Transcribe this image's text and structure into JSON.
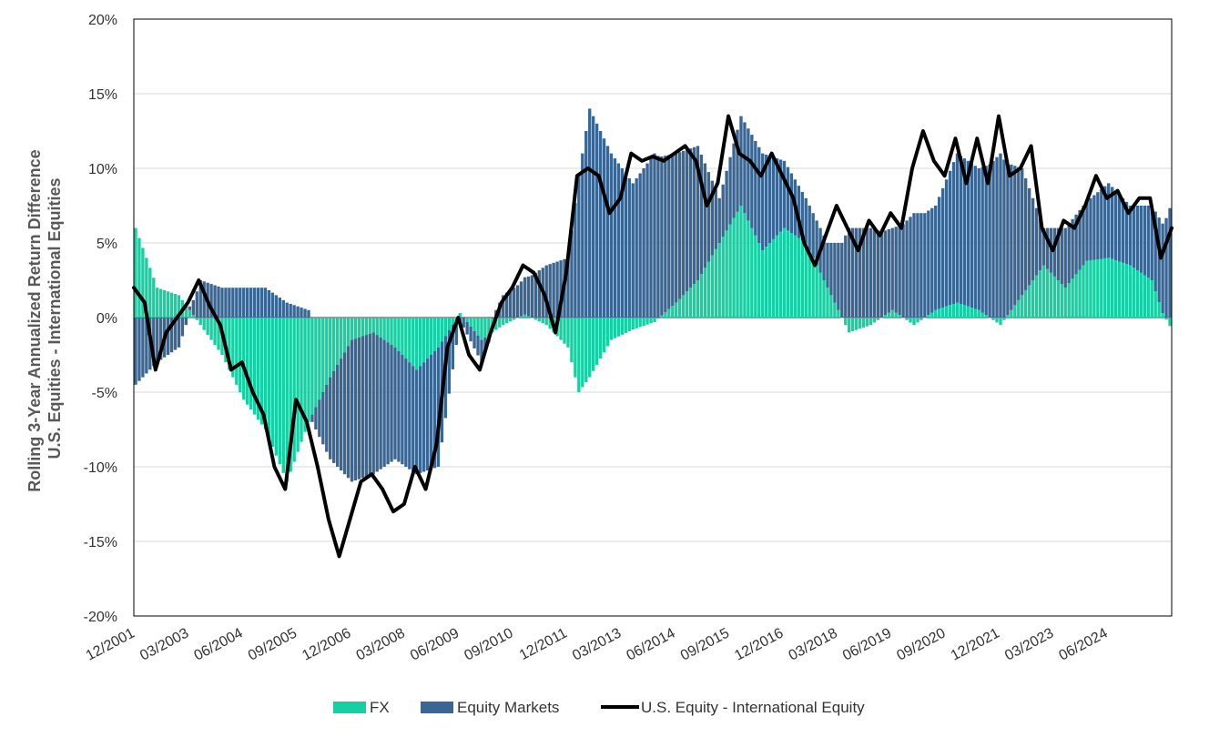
{
  "chart_data": {
    "type": "bar",
    "title": "",
    "ylabel_lines": [
      "Rolling 3-Year Annualized Return Difference",
      "U.S. Equities - International Equities"
    ],
    "xlabel": "",
    "ylim": [
      -20,
      20
    ],
    "yticks": [
      20,
      15,
      10,
      5,
      0,
      -5,
      -10,
      -15,
      -20
    ],
    "ytick_labels": [
      "20%",
      "15%",
      "10%",
      "5%",
      "0%",
      "-5%",
      "-10%",
      "-15%",
      "-20%"
    ],
    "x_start": "12/2001",
    "x_end": "12/2025",
    "xtick_labels": [
      "12/2001",
      "03/2003",
      "06/2004",
      "09/2005",
      "12/2006",
      "03/2008",
      "06/2009",
      "09/2010",
      "12/2011",
      "03/2013",
      "06/2014",
      "09/2015",
      "12/2016",
      "03/2018",
      "06/2019",
      "09/2020",
      "12/2021",
      "03/2023",
      "06/2024"
    ],
    "grid": true,
    "legend_placement": "bottom-center",
    "colors": {
      "fx": "#16cfa2",
      "equity": "#3a6694",
      "line": "#000000",
      "grid": "#d9d9d9"
    },
    "series": [
      {
        "name": "FX",
        "kind": "stacked-bar",
        "points": [
          [
            "12/2001",
            6.0
          ],
          [
            "06/2002",
            2.0
          ],
          [
            "12/2002",
            1.5
          ],
          [
            "06/2003",
            -0.5
          ],
          [
            "12/2003",
            -2.5
          ],
          [
            "06/2004",
            -5.5
          ],
          [
            "12/2004",
            -7.5
          ],
          [
            "06/2005",
            -11.0
          ],
          [
            "12/2005",
            -7.0
          ],
          [
            "06/2006",
            -4.0
          ],
          [
            "12/2006",
            -1.5
          ],
          [
            "06/2007",
            -1.0
          ],
          [
            "12/2007",
            -2.0
          ],
          [
            "06/2008",
            -3.5
          ],
          [
            "12/2008",
            -2.0
          ],
          [
            "06/2009",
            0.3
          ],
          [
            "12/2009",
            -1.5
          ],
          [
            "06/2010",
            -0.5
          ],
          [
            "12/2010",
            0.2
          ],
          [
            "06/2011",
            -0.5
          ],
          [
            "12/2011",
            -2.0
          ],
          [
            "03/2012",
            -5.0
          ],
          [
            "06/2012",
            -4.0
          ],
          [
            "12/2012",
            -1.5
          ],
          [
            "06/2013",
            -0.8
          ],
          [
            "12/2013",
            -0.3
          ],
          [
            "06/2014",
            1.0
          ],
          [
            "12/2014",
            2.5
          ],
          [
            "06/2015",
            5.0
          ],
          [
            "12/2015",
            7.5
          ],
          [
            "06/2016",
            4.5
          ],
          [
            "12/2016",
            6.0
          ],
          [
            "06/2017",
            5.0
          ],
          [
            "12/2017",
            2.0
          ],
          [
            "06/2018",
            -1.0
          ],
          [
            "12/2018",
            -0.5
          ],
          [
            "06/2019",
            0.5
          ],
          [
            "12/2019",
            -0.5
          ],
          [
            "06/2020",
            0.5
          ],
          [
            "12/2020",
            1.0
          ],
          [
            "06/2021",
            0.5
          ],
          [
            "12/2021",
            -0.5
          ],
          [
            "06/2022",
            1.5
          ],
          [
            "12/2022",
            3.5
          ],
          [
            "06/2023",
            2.0
          ],
          [
            "12/2023",
            3.8
          ],
          [
            "06/2024",
            4.0
          ],
          [
            "12/2024",
            3.5
          ],
          [
            "06/2025",
            2.5
          ],
          [
            "09/2025",
            0.3
          ],
          [
            "12/2025",
            -1.0
          ]
        ]
      },
      {
        "name": "Equity Markets",
        "kind": "stacked-bar",
        "points": [
          [
            "12/2001",
            -4.5
          ],
          [
            "06/2002",
            -3.0
          ],
          [
            "12/2002",
            -2.0
          ],
          [
            "06/2003",
            2.5
          ],
          [
            "12/2003",
            2.0
          ],
          [
            "06/2004",
            2.0
          ],
          [
            "12/2004",
            2.0
          ],
          [
            "06/2005",
            1.0
          ],
          [
            "12/2005",
            0.5
          ],
          [
            "06/2006",
            -5.5
          ],
          [
            "12/2006",
            -9.5
          ],
          [
            "06/2007",
            -9.5
          ],
          [
            "12/2007",
            -7.5
          ],
          [
            "06/2008",
            -7.0
          ],
          [
            "12/2008",
            -8.0
          ],
          [
            "06/2009",
            -0.5
          ],
          [
            "12/2009",
            -1.5
          ],
          [
            "06/2010",
            1.5
          ],
          [
            "12/2010",
            2.5
          ],
          [
            "06/2011",
            3.5
          ],
          [
            "12/2011",
            4.0
          ],
          [
            "03/2012",
            9.5
          ],
          [
            "06/2012",
            14.0
          ],
          [
            "12/2012",
            11.0
          ],
          [
            "06/2013",
            9.0
          ],
          [
            "12/2013",
            11.0
          ],
          [
            "06/2014",
            10.0
          ],
          [
            "12/2014",
            9.0
          ],
          [
            "06/2015",
            3.0
          ],
          [
            "12/2015",
            6.0
          ],
          [
            "06/2016",
            6.5
          ],
          [
            "12/2016",
            4.5
          ],
          [
            "06/2017",
            3.0
          ],
          [
            "12/2017",
            3.0
          ],
          [
            "06/2018",
            6.0
          ],
          [
            "12/2018",
            6.0
          ],
          [
            "06/2019",
            5.5
          ],
          [
            "12/2019",
            7.0
          ],
          [
            "06/2020",
            7.0
          ],
          [
            "12/2020",
            10.0
          ],
          [
            "06/2021",
            9.5
          ],
          [
            "12/2021",
            11.0
          ],
          [
            "06/2022",
            8.5
          ],
          [
            "12/2022",
            2.5
          ],
          [
            "06/2023",
            4.0
          ],
          [
            "12/2023",
            4.0
          ],
          [
            "06/2024",
            5.0
          ],
          [
            "12/2024",
            4.0
          ],
          [
            "06/2025",
            5.0
          ],
          [
            "09/2025",
            6.0
          ],
          [
            "12/2025",
            8.0
          ]
        ]
      },
      {
        "name": "U.S. Equity - International Equity",
        "kind": "line",
        "points": [
          [
            "12/2001",
            2.0
          ],
          [
            "03/2002",
            1.0
          ],
          [
            "06/2002",
            -3.5
          ],
          [
            "09/2002",
            -1.0
          ],
          [
            "12/2002",
            0.0
          ],
          [
            "03/2003",
            1.0
          ],
          [
            "06/2003",
            2.5
          ],
          [
            "09/2003",
            0.8
          ],
          [
            "12/2003",
            -0.5
          ],
          [
            "03/2004",
            -3.5
          ],
          [
            "06/2004",
            -3.0
          ],
          [
            "09/2004",
            -5.0
          ],
          [
            "12/2004",
            -6.5
          ],
          [
            "03/2005",
            -10.0
          ],
          [
            "06/2005",
            -11.5
          ],
          [
            "09/2005",
            -5.5
          ],
          [
            "12/2005",
            -7.0
          ],
          [
            "03/2006",
            -10.0
          ],
          [
            "06/2006",
            -13.5
          ],
          [
            "09/2006",
            -16.0
          ],
          [
            "12/2006",
            -13.5
          ],
          [
            "03/2007",
            -11.0
          ],
          [
            "06/2007",
            -10.5
          ],
          [
            "09/2007",
            -11.5
          ],
          [
            "12/2007",
            -13.0
          ],
          [
            "03/2008",
            -12.5
          ],
          [
            "06/2008",
            -10.0
          ],
          [
            "09/2008",
            -11.5
          ],
          [
            "12/2008",
            -8.5
          ],
          [
            "03/2009",
            -2.0
          ],
          [
            "06/2009",
            0.0
          ],
          [
            "09/2009",
            -2.5
          ],
          [
            "12/2009",
            -3.5
          ],
          [
            "03/2010",
            -1.0
          ],
          [
            "06/2010",
            1.0
          ],
          [
            "09/2010",
            2.0
          ],
          [
            "12/2010",
            3.5
          ],
          [
            "03/2011",
            3.0
          ],
          [
            "06/2011",
            1.5
          ],
          [
            "09/2011",
            -1.0
          ],
          [
            "12/2011",
            3.0
          ],
          [
            "03/2012",
            9.5
          ],
          [
            "06/2012",
            10.0
          ],
          [
            "09/2012",
            9.5
          ],
          [
            "12/2012",
            7.0
          ],
          [
            "03/2013",
            8.0
          ],
          [
            "06/2013",
            11.0
          ],
          [
            "09/2013",
            10.5
          ],
          [
            "12/2013",
            10.8
          ],
          [
            "03/2014",
            10.5
          ],
          [
            "06/2014",
            11.0
          ],
          [
            "09/2014",
            11.5
          ],
          [
            "12/2014",
            10.5
          ],
          [
            "03/2015",
            7.5
          ],
          [
            "06/2015",
            9.0
          ],
          [
            "09/2015",
            13.5
          ],
          [
            "12/2015",
            11.0
          ],
          [
            "03/2016",
            10.5
          ],
          [
            "06/2016",
            9.5
          ],
          [
            "09/2016",
            11.0
          ],
          [
            "12/2016",
            9.5
          ],
          [
            "03/2017",
            8.0
          ],
          [
            "06/2017",
            5.0
          ],
          [
            "09/2017",
            3.5
          ],
          [
            "12/2017",
            5.5
          ],
          [
            "03/2018",
            7.5
          ],
          [
            "06/2018",
            6.0
          ],
          [
            "09/2018",
            4.5
          ],
          [
            "12/2018",
            6.5
          ],
          [
            "03/2019",
            5.5
          ],
          [
            "06/2019",
            7.0
          ],
          [
            "09/2019",
            6.0
          ],
          [
            "12/2019",
            10.0
          ],
          [
            "03/2020",
            12.5
          ],
          [
            "06/2020",
            10.5
          ],
          [
            "09/2020",
            9.5
          ],
          [
            "12/2020",
            12.0
          ],
          [
            "03/2021",
            9.0
          ],
          [
            "06/2021",
            12.0
          ],
          [
            "09/2021",
            9.0
          ],
          [
            "12/2021",
            13.5
          ],
          [
            "03/2022",
            9.5
          ],
          [
            "06/2022",
            10.0
          ],
          [
            "09/2022",
            11.5
          ],
          [
            "12/2022",
            6.0
          ],
          [
            "03/2023",
            4.5
          ],
          [
            "06/2023",
            6.5
          ],
          [
            "09/2023",
            6.0
          ],
          [
            "12/2023",
            7.5
          ],
          [
            "03/2024",
            9.5
          ],
          [
            "06/2024",
            8.0
          ],
          [
            "09/2024",
            8.5
          ],
          [
            "12/2024",
            7.0
          ],
          [
            "03/2025",
            8.0
          ],
          [
            "06/2025",
            8.0
          ],
          [
            "09/2025",
            4.0
          ],
          [
            "12/2025",
            6.0
          ]
        ]
      }
    ]
  }
}
